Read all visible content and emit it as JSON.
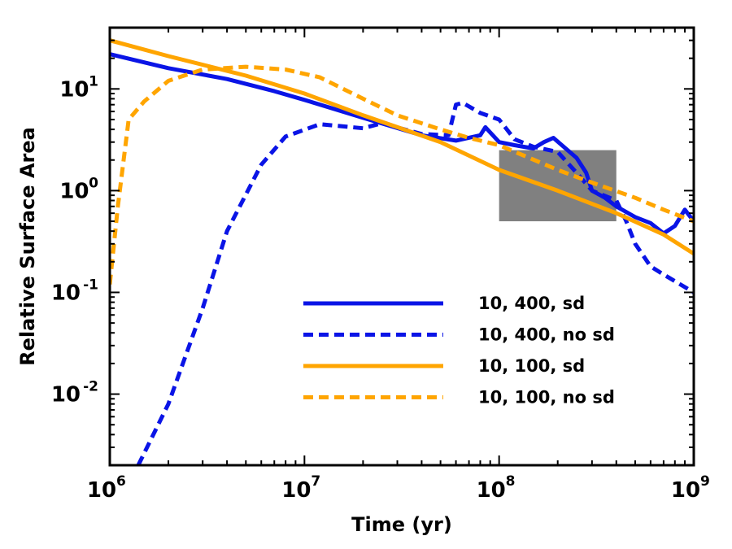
{
  "chart_data": {
    "type": "line",
    "title": "",
    "xlabel": "Time (yr)",
    "ylabel": "Relative Surface Area",
    "xscale": "log",
    "yscale": "log",
    "xlim": [
      1000000,
      1000000000
    ],
    "ylim": [
      0.002,
      40
    ],
    "grid": false,
    "legend_position": "lower-right",
    "xticks": [
      {
        "value": 1000000,
        "base": "10",
        "exp": "6"
      },
      {
        "value": 10000000,
        "base": "10",
        "exp": "7"
      },
      {
        "value": 100000000,
        "base": "10",
        "exp": "8"
      },
      {
        "value": 1000000000,
        "base": "10",
        "exp": "9"
      }
    ],
    "yticks": [
      {
        "value": 0.01,
        "base": "10",
        "exp": "-2"
      },
      {
        "value": 0.1,
        "base": "10",
        "exp": "-1"
      },
      {
        "value": 1,
        "base": "10",
        "exp": "0"
      },
      {
        "value": 10,
        "base": "10",
        "exp": "1"
      }
    ],
    "shaded_region": {
      "x": [
        100000000,
        400000000
      ],
      "y": [
        0.5,
        2.5
      ],
      "color": "#808080"
    },
    "series": [
      {
        "name": "10, 400, sd",
        "color": "#0a14e6",
        "dash": "solid",
        "points": [
          [
            1000000,
            22
          ],
          [
            2000000,
            16
          ],
          [
            4000000,
            12.5
          ],
          [
            7000000,
            9.5
          ],
          [
            10000000,
            7.8
          ],
          [
            20000000,
            5.2
          ],
          [
            40000000,
            3.5
          ],
          [
            60000000,
            3.1
          ],
          [
            80000000,
            3.5
          ],
          [
            85000000,
            4.2
          ],
          [
            100000000,
            3.0
          ],
          [
            120000000,
            2.8
          ],
          [
            150000000,
            2.6
          ],
          [
            170000000,
            3.0
          ],
          [
            190000000,
            3.3
          ],
          [
            210000000,
            2.8
          ],
          [
            250000000,
            2.1
          ],
          [
            280000000,
            1.5
          ],
          [
            300000000,
            1.0
          ],
          [
            350000000,
            0.85
          ],
          [
            400000000,
            0.7
          ],
          [
            500000000,
            0.55
          ],
          [
            600000000,
            0.48
          ],
          [
            700000000,
            0.38
          ],
          [
            800000000,
            0.45
          ],
          [
            900000000,
            0.65
          ],
          [
            1000000000,
            0.5
          ]
        ]
      },
      {
        "name": "10, 400, no sd",
        "color": "#0a14e6",
        "dash": "dashed",
        "points": [
          [
            1400000,
            0.002
          ],
          [
            2000000,
            0.008
          ],
          [
            3000000,
            0.07
          ],
          [
            4000000,
            0.4
          ],
          [
            6000000,
            1.8
          ],
          [
            8000000,
            3.4
          ],
          [
            12000000,
            4.5
          ],
          [
            20000000,
            4.1
          ],
          [
            25000000,
            4.6
          ],
          [
            40000000,
            3.6
          ],
          [
            55000000,
            3.5
          ],
          [
            60000000,
            7.0
          ],
          [
            65000000,
            7.3
          ],
          [
            80000000,
            5.8
          ],
          [
            100000000,
            5.0
          ],
          [
            120000000,
            3.2
          ],
          [
            150000000,
            2.7
          ],
          [
            200000000,
            2.4
          ],
          [
            250000000,
            1.5
          ],
          [
            300000000,
            1.0
          ],
          [
            400000000,
            0.8
          ],
          [
            450000000,
            0.5
          ],
          [
            500000000,
            0.3
          ],
          [
            600000000,
            0.18
          ],
          [
            700000000,
            0.15
          ],
          [
            1000000000,
            0.1
          ]
        ]
      },
      {
        "name": "10, 100, sd",
        "color": "#ffa500",
        "dash": "solid",
        "points": [
          [
            1000000,
            30
          ],
          [
            2000000,
            21
          ],
          [
            5000000,
            13.5
          ],
          [
            10000000,
            9
          ],
          [
            20000000,
            5.5
          ],
          [
            50000000,
            3.0
          ],
          [
            100000000,
            1.6
          ],
          [
            200000000,
            1.0
          ],
          [
            400000000,
            0.6
          ],
          [
            700000000,
            0.37
          ],
          [
            1000000000,
            0.24
          ]
        ]
      },
      {
        "name": "10, 100, no sd",
        "color": "#ffa500",
        "dash": "dashed",
        "points": [
          [
            1000000,
            0.12
          ],
          [
            1100000,
            0.7
          ],
          [
            1250000,
            5.0
          ],
          [
            1500000,
            7.5
          ],
          [
            2000000,
            12
          ],
          [
            3000000,
            15.5
          ],
          [
            5000000,
            16.5
          ],
          [
            8000000,
            15.5
          ],
          [
            12000000,
            13
          ],
          [
            20000000,
            8
          ],
          [
            30000000,
            5.5
          ],
          [
            50000000,
            4.0
          ],
          [
            70000000,
            3.3
          ],
          [
            100000000,
            2.8
          ],
          [
            200000000,
            1.6
          ],
          [
            300000000,
            1.2
          ],
          [
            500000000,
            0.85
          ],
          [
            700000000,
            0.65
          ],
          [
            1000000000,
            0.5
          ]
        ]
      }
    ]
  }
}
